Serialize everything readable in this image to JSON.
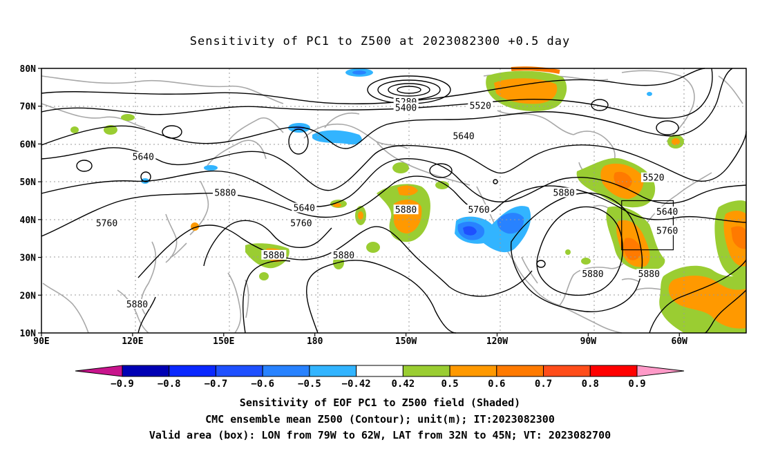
{
  "title": "Sensitivity of PC1 to Z500 at 2023082300 +0.5 day",
  "map": {
    "lat_labels": [
      "80N",
      "70N",
      "60N",
      "50N",
      "40N",
      "30N",
      "20N",
      "10N"
    ],
    "lon_labels": [
      "90E",
      "120E",
      "150E",
      "180",
      "150W",
      "120W",
      "90W",
      "60W"
    ],
    "contour_labels": [
      {
        "text": "5280",
        "lon": -150,
        "lat": 71.0
      },
      {
        "text": "5400",
        "lon": -150,
        "lat": 69.5
      },
      {
        "text": "5520",
        "lon": -125.5,
        "lat": 70.0
      },
      {
        "text": "5640",
        "lon": -131,
        "lat": 62.0
      },
      {
        "text": "5640",
        "lon": 123.5,
        "lat": 56.5
      },
      {
        "text": "5880",
        "lon": 150.5,
        "lat": 47.0
      },
      {
        "text": "5760",
        "lon": 111.5,
        "lat": 39.0
      },
      {
        "text": "5640",
        "lon": 176.5,
        "lat": 43.0
      },
      {
        "text": "5760",
        "lon": 175.5,
        "lat": 39.0
      },
      {
        "text": "5880",
        "lon": -150,
        "lat": 42.5
      },
      {
        "text": "5760",
        "lon": -126,
        "lat": 42.5
      },
      {
        "text": "5880",
        "lon": 166.5,
        "lat": 30.5
      },
      {
        "text": "5880",
        "lon": -170.5,
        "lat": 30.5
      },
      {
        "text": "5880",
        "lon": -98,
        "lat": 47.0
      },
      {
        "text": "5520",
        "lon": -68.5,
        "lat": 51.0
      },
      {
        "text": "5640",
        "lon": -64,
        "lat": 42.0
      },
      {
        "text": "5760",
        "lon": -64,
        "lat": 37.0
      },
      {
        "text": "5880",
        "lon": -88.5,
        "lat": 25.5
      },
      {
        "text": "5880",
        "lon": -70,
        "lat": 25.5
      },
      {
        "text": "5880",
        "lon": 121.5,
        "lat": 17.5
      }
    ],
    "valid_box": {
      "lon_from": -79,
      "lon_to": -62,
      "lat_from": 32,
      "lat_to": 45
    }
  },
  "colorbar": {
    "labels": [
      "-0.9",
      "-0.8",
      "-0.7",
      "-0.6",
      "-0.5",
      "-0.42",
      "0.42",
      "0.5",
      "0.6",
      "0.7",
      "0.8",
      "0.9"
    ],
    "colors": [
      "#0000b4",
      "#0a28ff",
      "#1e50ff",
      "#2882ff",
      "#32b4ff",
      "#ffffff",
      "#9acd32",
      "#ff9900",
      "#ff7a00",
      "#ff4d1a",
      "#ff0000"
    ],
    "low_end_color": "#c8148c",
    "high_end_color": "#ff9ac8"
  },
  "captions": {
    "line1": "Sensitivity of EOF PC1 to Z500 field (Shaded)",
    "line2": "CMC ensemble mean Z500 (Contour); unit(m); IT:2023082300",
    "line3": "Valid area (box): LON from 79W to 62W, LAT from 32N to 45N; VT: 2023082700"
  }
}
